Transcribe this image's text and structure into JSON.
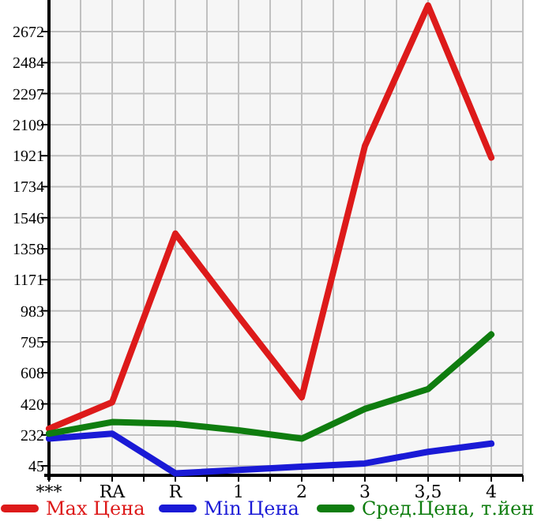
{
  "chart_data": {
    "type": "line",
    "categories": [
      "***",
      "RA",
      "R",
      "1",
      "2",
      "3",
      "3,5",
      "4"
    ],
    "series": [
      {
        "name": "Max Цена",
        "color": "#dd1a1a",
        "values": [
          270,
          430,
          1450,
          950,
          460,
          1980,
          2830,
          1910
        ]
      },
      {
        "name": "Min Цена",
        "color": "#1a1ad6",
        "values": [
          210,
          240,
          0,
          20,
          40,
          60,
          130,
          180
        ]
      },
      {
        "name": "Сред.Цена, т.йен",
        "color": "#0f7d0f",
        "values": [
          240,
          310,
          300,
          260,
          210,
          390,
          510,
          840
        ]
      }
    ],
    "ylim": [
      -12,
      2863
    ],
    "yticks": [
      45,
      232,
      420,
      608,
      795,
      983,
      1171,
      1358,
      1546,
      1734,
      1921,
      2109,
      2297,
      2484,
      2672
    ],
    "grid": true,
    "legend": "bottom",
    "line_style": "solid"
  }
}
